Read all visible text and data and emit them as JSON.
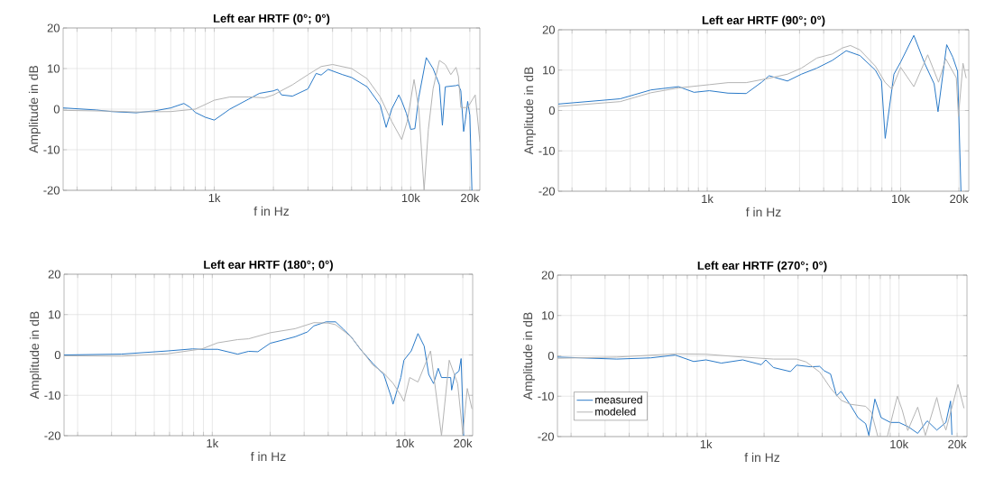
{
  "chart_data": [
    {
      "type": "line",
      "title": "Left ear HRTF (0°; 0°)",
      "xlabel": "f in Hz",
      "ylabel": "Amplitude in dB",
      "log": "x",
      "grid": true,
      "xlim": [
        170,
        22500
      ],
      "ylim": [
        -20,
        20
      ],
      "yticks": [
        -20,
        -10,
        0,
        10,
        20
      ],
      "xticks": [
        {
          "value": 200,
          "label": null
        },
        {
          "value": 300,
          "label": null
        },
        {
          "value": 400,
          "label": null
        },
        {
          "value": 500,
          "label": null
        },
        {
          "value": 600,
          "label": null
        },
        {
          "value": 700,
          "label": null
        },
        {
          "value": 800,
          "label": null
        },
        {
          "value": 900,
          "label": null
        },
        {
          "value": 1000,
          "label": "1k"
        },
        {
          "value": 2000,
          "label": null
        },
        {
          "value": 3000,
          "label": null
        },
        {
          "value": 4000,
          "label": null
        },
        {
          "value": 5000,
          "label": null
        },
        {
          "value": 6000,
          "label": null
        },
        {
          "value": 7000,
          "label": null
        },
        {
          "value": 8000,
          "label": null
        },
        {
          "value": 9000,
          "label": null
        },
        {
          "value": 10000,
          "label": "10k"
        },
        {
          "value": 20000,
          "label": "20k"
        }
      ],
      "series": [
        {
          "color": "#2a7ac8",
          "x": [
            170,
            250,
            300,
            400,
            500,
            600,
            700,
            750,
            800,
            900,
            1000,
            1200,
            1500,
            1700,
            2000,
            2100,
            2200,
            2500,
            3000,
            3300,
            3500,
            3800,
            4500,
            5000,
            6000,
            7000,
            7500,
            8000,
            8500,
            8700,
            9000,
            9500,
            10000,
            10500,
            11000,
            12000,
            13000,
            14000,
            14500,
            15000,
            17000,
            17500,
            18000,
            18600,
            19000,
            19500,
            20000,
            20500
          ],
          "values": [
            0.3,
            -0.2,
            -0.6,
            -0.9,
            -0.4,
            0.3,
            1.4,
            0.5,
            -0.8,
            -2,
            -2.7,
            0,
            2.5,
            3.9,
            4.5,
            4.9,
            3.5,
            3.2,
            5,
            8.8,
            8.4,
            9.8,
            8.5,
            7.8,
            5.5,
            1,
            -4.5,
            0,
            2.5,
            3.5,
            2,
            -1,
            -5,
            -4.8,
            3,
            12.7,
            10,
            6,
            -4,
            5.5,
            5.8,
            6,
            4.5,
            -5.5,
            -2.5,
            1.9,
            -1.5,
            -20
          ]
        },
        {
          "color": "#b4b4b4",
          "x": [
            170,
            300,
            400,
            600,
            800,
            1000,
            1200,
            1500,
            1800,
            2000,
            2500,
            3000,
            3500,
            4000,
            5000,
            6000,
            7000,
            8000,
            9000,
            9600,
            10400,
            11000,
            11700,
            12300,
            13000,
            14000,
            15000,
            16000,
            17000,
            17500,
            18000,
            19500,
            21300,
            22500
          ],
          "values": [
            -0.3,
            -0.5,
            -0.7,
            -0.6,
            0,
            2.2,
            3,
            3,
            2.8,
            3.5,
            6,
            8.5,
            10.5,
            11,
            10,
            7.5,
            3,
            -3,
            -7.5,
            -3,
            7.3,
            0,
            -20,
            -5,
            5,
            12,
            11,
            8.5,
            10.3,
            8,
            0.4,
            0.4,
            3.5,
            -8
          ]
        }
      ]
    },
    {
      "type": "line",
      "title": "Left ear HRTF (90°; 0°)",
      "xlabel": "f in Hz",
      "ylabel": "Amplitude in dB",
      "log": "x",
      "grid": true,
      "xlim": [
        170,
        22500
      ],
      "ylim": [
        -20,
        20
      ],
      "yticks": [
        -20,
        -10,
        0,
        10,
        20
      ],
      "xticks": [
        {
          "value": 200,
          "label": null
        },
        {
          "value": 300,
          "label": null
        },
        {
          "value": 400,
          "label": null
        },
        {
          "value": 500,
          "label": null
        },
        {
          "value": 600,
          "label": null
        },
        {
          "value": 700,
          "label": null
        },
        {
          "value": 800,
          "label": null
        },
        {
          "value": 900,
          "label": null
        },
        {
          "value": 1000,
          "label": "1k"
        },
        {
          "value": 2000,
          "label": null
        },
        {
          "value": 3000,
          "label": null
        },
        {
          "value": 4000,
          "label": null
        },
        {
          "value": 5000,
          "label": null
        },
        {
          "value": 6000,
          "label": null
        },
        {
          "value": 7000,
          "label": null
        },
        {
          "value": 8000,
          "label": null
        },
        {
          "value": 9000,
          "label": null
        },
        {
          "value": 10000,
          "label": "10k"
        },
        {
          "value": 20000,
          "label": "20k"
        }
      ],
      "series": [
        {
          "color": "#2a7ac8",
          "x": [
            170,
            355,
            512,
            711,
            855,
            1025,
            1280,
            1590,
            1910,
            2090,
            2600,
            3070,
            3690,
            4430,
            5230,
            6160,
            7400,
            7960,
            8320,
            9230,
            10000,
            11700,
            13300,
            14900,
            15600,
            17300,
            18600,
            19700,
            20500
          ],
          "values": [
            1.6,
            2.9,
            5.1,
            5.9,
            4.5,
            4.9,
            4.3,
            4.2,
            7,
            8.6,
            7.3,
            9,
            10.5,
            12.4,
            14.8,
            13.6,
            10,
            7.3,
            -6.9,
            9,
            12,
            18.6,
            11.7,
            6.6,
            -0.3,
            16.3,
            13.2,
            9.7,
            -20
          ]
        },
        {
          "color": "#b4b4b4",
          "x": [
            170,
            355,
            512,
            711,
            1025,
            1280,
            1590,
            2090,
            2600,
            3070,
            3690,
            4430,
            5000,
            5500,
            6160,
            7400,
            8300,
            9000,
            10000,
            11700,
            13800,
            15700,
            17100,
            19400,
            19900,
            21000,
            21800
          ],
          "values": [
            1,
            2.2,
            4.4,
            5.6,
            6.4,
            6.9,
            6.9,
            8,
            9,
            10.5,
            13,
            14,
            15.5,
            16.1,
            15,
            11,
            7,
            5.3,
            10.7,
            5.9,
            13.8,
            7,
            12.8,
            8.1,
            -1.5,
            11.7,
            8.1
          ]
        }
      ]
    },
    {
      "type": "line",
      "title": "Left ear HRTF (180°; 0°)",
      "xlabel": "f in Hz",
      "ylabel": "Amplitude in dB",
      "log": "x",
      "grid": true,
      "xlim": [
        170,
        22500
      ],
      "ylim": [
        -20,
        20
      ],
      "yticks": [
        -20,
        -10,
        0,
        10,
        20
      ],
      "xticks": [
        {
          "value": 200,
          "label": null
        },
        {
          "value": 300,
          "label": null
        },
        {
          "value": 400,
          "label": null
        },
        {
          "value": 500,
          "label": null
        },
        {
          "value": 600,
          "label": null
        },
        {
          "value": 700,
          "label": null
        },
        {
          "value": 800,
          "label": null
        },
        {
          "value": 900,
          "label": null
        },
        {
          "value": 1000,
          "label": "1k"
        },
        {
          "value": 2000,
          "label": null
        },
        {
          "value": 3000,
          "label": null
        },
        {
          "value": 4000,
          "label": null
        },
        {
          "value": 5000,
          "label": null
        },
        {
          "value": 6000,
          "label": null
        },
        {
          "value": 7000,
          "label": null
        },
        {
          "value": 8000,
          "label": null
        },
        {
          "value": 9000,
          "label": null
        },
        {
          "value": 10000,
          "label": "10k"
        },
        {
          "value": 20000,
          "label": "20k"
        }
      ],
      "series": [
        {
          "color": "#2a7ac8",
          "x": [
            170,
            337,
            588,
            790,
            885,
            1065,
            1355,
            1545,
            1725,
            2000,
            2240,
            2690,
            3120,
            3370,
            3900,
            4370,
            4790,
            5260,
            5880,
            6820,
            7770,
            8520,
            8680,
            9530,
            9890,
            10800,
            11700,
            12600,
            13300,
            14100,
            14900,
            15500,
            17300,
            17500,
            18200,
            19100,
            19600,
            20200
          ],
          "values": [
            0,
            0.2,
            1,
            1.5,
            1.4,
            1.4,
            0.2,
            0.9,
            0.8,
            2.9,
            3.5,
            4.5,
            5.7,
            7.2,
            8.2,
            8.2,
            6.4,
            4.5,
            1.4,
            -2.1,
            -4.8,
            -10.6,
            -12.2,
            -5.6,
            -1.3,
            1,
            5.3,
            2.2,
            -4.8,
            -7.1,
            -3.3,
            -5.6,
            -5.6,
            -8.7,
            -4.8,
            -4,
            -0.9,
            -20
          ]
        },
        {
          "color": "#b4b4b4",
          "x": [
            170,
            337,
            588,
            885,
            1065,
            1355,
            1545,
            2000,
            2690,
            3370,
            4000,
            4370,
            5260,
            5880,
            6820,
            7770,
            8680,
            9530,
            9890,
            10600,
            11700,
            13600,
            15500,
            17000,
            18800,
            20000,
            21100,
            22300
          ],
          "values": [
            -0.2,
            -0.3,
            0.3,
            1.5,
            3,
            3.8,
            4,
            5.5,
            6.5,
            8,
            7.9,
            7.5,
            4.5,
            1.5,
            -2.5,
            -4.5,
            -7,
            -10,
            -11.5,
            -5.6,
            -6.7,
            1,
            -20,
            -1.3,
            -7.1,
            -19.6,
            -8.3,
            -13.3
          ]
        }
      ]
    },
    {
      "type": "line",
      "title": "Left ear HRTF (270°; 0°)",
      "xlabel": "f in Hz",
      "ylabel": "Amplitude in dB",
      "log": "x",
      "grid": true,
      "legend": "bottom left",
      "xlim": [
        170,
        22500
      ],
      "ylim": [
        -20,
        20
      ],
      "yticks": [
        -20,
        -10,
        0,
        10,
        20
      ],
      "xticks": [
        {
          "value": 200,
          "label": null
        },
        {
          "value": 300,
          "label": null
        },
        {
          "value": 400,
          "label": null
        },
        {
          "value": 500,
          "label": null
        },
        {
          "value": 600,
          "label": null
        },
        {
          "value": 700,
          "label": null
        },
        {
          "value": 800,
          "label": null
        },
        {
          "value": 900,
          "label": null
        },
        {
          "value": 1000,
          "label": "1k"
        },
        {
          "value": 2000,
          "label": null
        },
        {
          "value": 3000,
          "label": null
        },
        {
          "value": 4000,
          "label": null
        },
        {
          "value": 5000,
          "label": null
        },
        {
          "value": 6000,
          "label": null
        },
        {
          "value": 7000,
          "label": null
        },
        {
          "value": 8000,
          "label": null
        },
        {
          "value": 9000,
          "label": null
        },
        {
          "value": 10000,
          "label": "10k"
        },
        {
          "value": 20000,
          "label": "20k"
        }
      ],
      "series": [
        {
          "name": "measured",
          "color": "#2a7ac8",
          "x": [
            170,
            345,
            517,
            693,
            863,
            1000,
            1200,
            1550,
            1935,
            2040,
            2240,
            2740,
            2950,
            3480,
            3880,
            4100,
            4420,
            4750,
            5010,
            5600,
            6130,
            6720,
            6980,
            7500,
            8080,
            9030,
            10000,
            11200,
            12500,
            14000,
            15700,
            17500,
            18500,
            18800
          ],
          "values": [
            -0.3,
            -0.8,
            -0.5,
            0.2,
            -1.4,
            -1,
            -1.8,
            -1,
            -2.2,
            -1,
            -2.9,
            -3.9,
            -2.3,
            -2.7,
            -2.6,
            -3.7,
            -4.5,
            -9.9,
            -8.8,
            -12.2,
            -15.3,
            -16.8,
            -19.7,
            -10.7,
            -15.3,
            -16.5,
            -16.5,
            -17.6,
            -19.2,
            -16.1,
            -18.4,
            -16.5,
            -11.2,
            -19.5
          ]
        },
        {
          "name": "modeled",
          "color": "#b4b4b4",
          "x": [
            170,
            345,
            693,
            1000,
            1550,
            2240,
            2950,
            3300,
            3880,
            4420,
            5010,
            5600,
            6720,
            7200,
            7770,
            8700,
            9800,
            10400,
            11100,
            12500,
            13700,
            15700,
            16600,
            17500,
            20200,
            21700
          ],
          "values": [
            -0.6,
            -0.3,
            0.5,
            0.4,
            -0.3,
            -0.8,
            -0.8,
            -1.5,
            -4,
            -8,
            -11,
            -12,
            -12.5,
            -14,
            -20,
            -20,
            -10,
            -13.5,
            -18.5,
            -12.7,
            -19.7,
            -10.3,
            -15.3,
            -18.4,
            -7.1,
            -12.9
          ]
        }
      ]
    }
  ]
}
